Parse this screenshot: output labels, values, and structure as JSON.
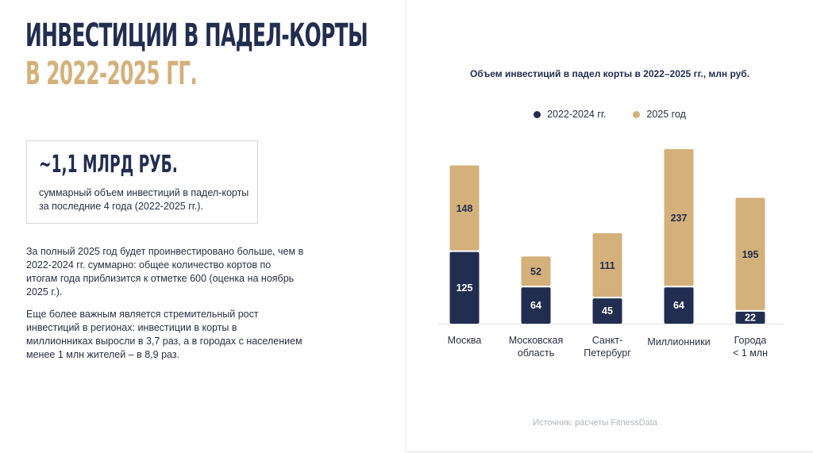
{
  "left": {
    "title_line1": "ИНВЕСТИЦИИ В ПАДЕЛ-КОРТЫ",
    "title_line2": "В 2022-2025 ГГ.",
    "highlight": {
      "value": "~1,1 МЛРД РУБ.",
      "caption": "суммарный объем инвестиций в падел-корты за последние 4 года (2022-2025 гг.)."
    },
    "paragraph1": "За полный 2025 год будет проинвестировано больше, чем в 2022-2024 гг. суммарно: общее количество кортов по итогам года приблизится к отметке 600 (оценка на ноябрь 2025 г.).",
    "paragraph2": "Еще более важным является стремительный рост инвестиций в регионах: инвестиции в корты в миллионниках выросли в 3,7 раз, а в городах с населением менее 1 млн жителей – в 8,9 раз."
  },
  "chart_data": {
    "type": "bar",
    "stacked": true,
    "title": "Объем инвестиций в падел корты в 2022–2025 гг., млн руб.",
    "categories": [
      "Москва",
      "Московская область",
      "Санкт-Петербург",
      "Миллионники",
      "Города < 1 млн"
    ],
    "category_lines": [
      [
        "Москва"
      ],
      [
        "Московская",
        "область"
      ],
      [
        "Санкт-",
        "Петербург"
      ],
      [
        "Миллионники"
      ],
      [
        "Города",
        "< 1 млн"
      ]
    ],
    "series": [
      {
        "name": "2022-2024 гг.",
        "values": [
          125,
          64,
          45,
          64,
          22
        ],
        "color": "#222e50"
      },
      {
        "name": "2025 год",
        "values": [
          148,
          52,
          111,
          237,
          195
        ],
        "color": "#d4b07a"
      }
    ],
    "legend_position": "top",
    "grid": false,
    "ylim": [
      0,
      301
    ]
  },
  "source": "Источник: расчеты FitnessData"
}
